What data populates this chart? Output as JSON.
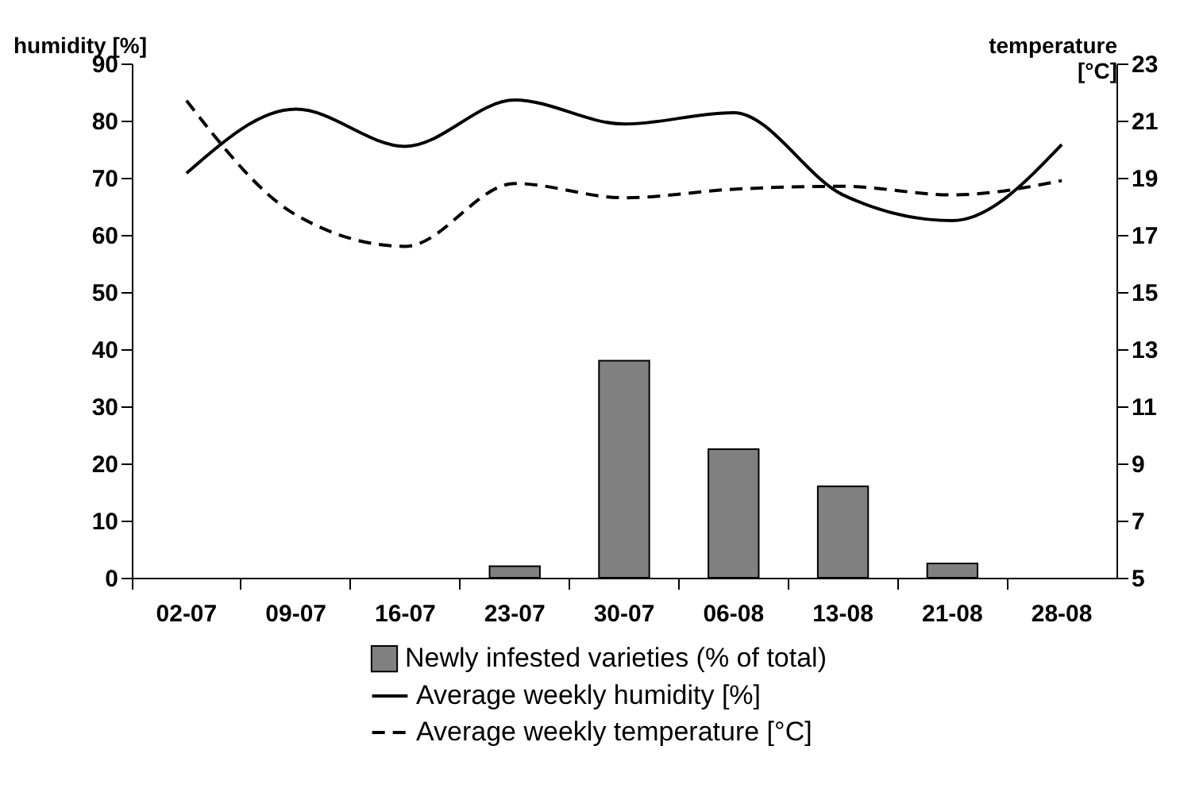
{
  "chart_data": {
    "type": "bar",
    "ylabel": "humidity [%]",
    "y2label": "temperature [°C]",
    "categories": [
      "02-07",
      "09-07",
      "16-07",
      "23-07",
      "30-07",
      "06-08",
      "13-08",
      "21-08",
      "28-08"
    ],
    "series": [
      {
        "name": "Newly infested varieties (% of total)",
        "type": "bar",
        "color": "#808080",
        "values": [
          null,
          null,
          null,
          2,
          38,
          22.5,
          16,
          2.5,
          null
        ]
      },
      {
        "name": "Average weekly humidity [%]",
        "type": "line",
        "color": "#000000",
        "line_style": "solid",
        "values": [
          70.8,
          82,
          75.5,
          83.6,
          79.4,
          81.4,
          67,
          62.5,
          75.8
        ]
      },
      {
        "name": "Average weekly temperature [°C]",
        "type": "line",
        "color": "#000000",
        "line_style": "dashed",
        "axis": "y2",
        "values": [
          21.7,
          17.7,
          16.6,
          18.8,
          18.3,
          18.6,
          18.7,
          18.4,
          18.9
        ]
      }
    ],
    "ylim": [
      0,
      90
    ],
    "yticks": [
      0,
      10,
      20,
      30,
      40,
      50,
      60,
      70,
      80,
      90
    ],
    "y2lim": [
      5,
      23
    ],
    "y2ticks": [
      5,
      7,
      9,
      11,
      13,
      15,
      17,
      19,
      21,
      23
    ],
    "grid": false,
    "legend": "bottom",
    "marker": "none"
  }
}
